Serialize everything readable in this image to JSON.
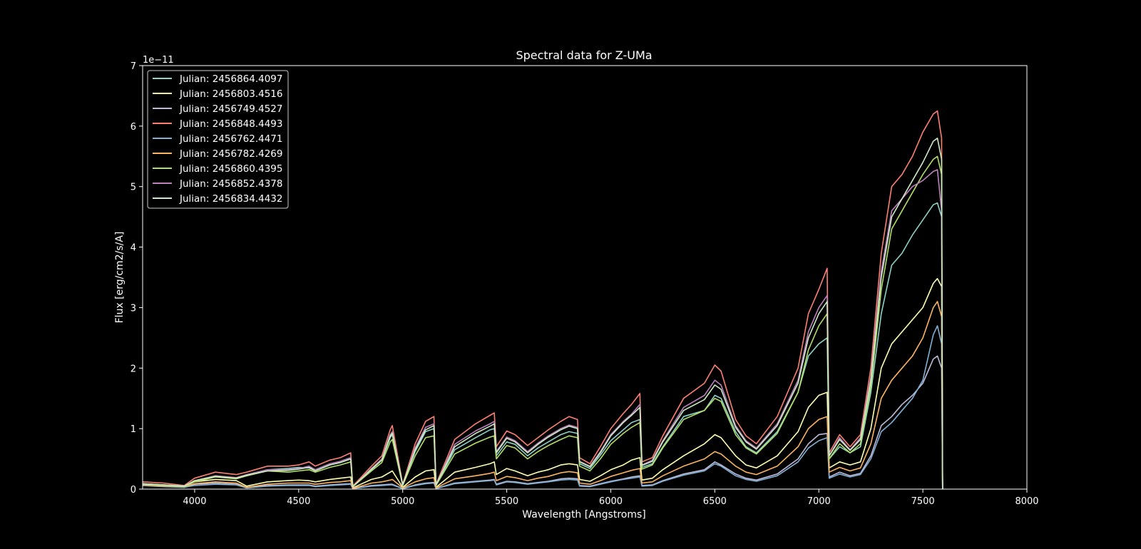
{
  "chart_data": {
    "type": "line",
    "title": "Spectral data for Z-UMa",
    "xlabel": "Wavelength [Angstroms]",
    "ylabel": "Flux [erg/cm2/s/A]",
    "y_offset_label": "1e−11",
    "xlim": [
      3750,
      8000
    ],
    "ylim": [
      0,
      7
    ],
    "y_scale": 1e-11,
    "xticks": [
      4000,
      4500,
      5000,
      5500,
      6000,
      6500,
      7000,
      7500,
      8000
    ],
    "yticks": [
      0,
      1,
      2,
      3,
      4,
      5,
      6,
      7
    ],
    "grid": false,
    "legend_position": "upper-left",
    "background": "#000000",
    "x": [
      3750,
      3850,
      3950,
      4000,
      4100,
      4200,
      4250,
      4350,
      4450,
      4500,
      4550,
      4580,
      4650,
      4700,
      4750,
      4760,
      4850,
      4900,
      4940,
      4950,
      5000,
      5060,
      5110,
      5150,
      5160,
      5250,
      5350,
      5420,
      5440,
      5450,
      5500,
      5540,
      5600,
      5650,
      5700,
      5760,
      5800,
      5840,
      5850,
      5900,
      5950,
      6000,
      6060,
      6100,
      6140,
      6150,
      6200,
      6250,
      6350,
      6450,
      6500,
      6530,
      6600,
      6650,
      6700,
      6800,
      6900,
      6950,
      7000,
      7040,
      7050,
      7100,
      7150,
      7200,
      7250,
      7300,
      7350,
      7400,
      7450,
      7500,
      7550,
      7570,
      7590,
      7595
    ],
    "series": [
      {
        "name": "Julian: 2456864.4097",
        "color": "#8dd3c7",
        "values": [
          0.08,
          0.06,
          0.04,
          0.13,
          0.22,
          0.18,
          0.22,
          0.32,
          0.34,
          0.36,
          0.35,
          0.3,
          0.4,
          0.44,
          0.5,
          0.04,
          0.32,
          0.48,
          0.85,
          0.9,
          0.06,
          0.62,
          0.95,
          1.0,
          0.06,
          0.65,
          0.85,
          0.98,
          1.0,
          0.55,
          0.78,
          0.74,
          0.55,
          0.68,
          0.78,
          0.9,
          0.95,
          0.92,
          0.42,
          0.34,
          0.56,
          0.8,
          0.98,
          1.1,
          1.15,
          0.36,
          0.42,
          0.7,
          1.2,
          1.3,
          1.55,
          1.5,
          0.95,
          0.7,
          0.6,
          0.95,
          1.6,
          2.2,
          2.4,
          2.5,
          0.5,
          0.7,
          0.6,
          0.7,
          1.6,
          2.9,
          3.7,
          3.9,
          4.2,
          4.45,
          4.7,
          4.73,
          4.5,
          0.0
        ]
      },
      {
        "name": "Julian: 2456803.4516",
        "color": "#ffffb3",
        "values": [
          0.09,
          0.07,
          0.05,
          0.12,
          0.16,
          0.14,
          0.05,
          0.12,
          0.14,
          0.15,
          0.14,
          0.12,
          0.16,
          0.18,
          0.2,
          0.02,
          0.16,
          0.2,
          0.28,
          0.3,
          0.03,
          0.2,
          0.3,
          0.32,
          0.03,
          0.28,
          0.36,
          0.42,
          0.45,
          0.24,
          0.34,
          0.3,
          0.22,
          0.28,
          0.32,
          0.4,
          0.42,
          0.4,
          0.16,
          0.13,
          0.22,
          0.32,
          0.4,
          0.48,
          0.52,
          0.15,
          0.18,
          0.32,
          0.55,
          0.75,
          0.9,
          0.85,
          0.55,
          0.4,
          0.35,
          0.55,
          0.95,
          1.35,
          1.55,
          1.6,
          0.35,
          0.45,
          0.4,
          0.45,
          1.0,
          2.0,
          2.4,
          2.6,
          2.8,
          3.0,
          3.4,
          3.48,
          3.35,
          0.0
        ]
      },
      {
        "name": "Julian: 2456749.4527",
        "color": "#bebada",
        "values": [
          0.07,
          0.05,
          0.03,
          0.08,
          0.1,
          0.08,
          0.03,
          0.06,
          0.07,
          0.07,
          0.07,
          0.05,
          0.07,
          0.08,
          0.09,
          0.01,
          0.06,
          0.07,
          0.08,
          0.08,
          0.01,
          0.07,
          0.1,
          0.11,
          0.01,
          0.1,
          0.13,
          0.15,
          0.16,
          0.08,
          0.13,
          0.12,
          0.09,
          0.11,
          0.13,
          0.17,
          0.18,
          0.17,
          0.06,
          0.05,
          0.09,
          0.13,
          0.17,
          0.2,
          0.22,
          0.06,
          0.07,
          0.14,
          0.25,
          0.32,
          0.45,
          0.4,
          0.25,
          0.18,
          0.15,
          0.25,
          0.5,
          0.75,
          0.9,
          0.92,
          0.2,
          0.28,
          0.22,
          0.26,
          0.55,
          1.05,
          1.2,
          1.4,
          1.55,
          1.75,
          2.15,
          2.2,
          2.0,
          0.0
        ]
      },
      {
        "name": "Julian: 2456848.4493",
        "color": "#fb8072",
        "values": [
          0.12,
          0.1,
          0.06,
          0.18,
          0.28,
          0.24,
          0.28,
          0.38,
          0.38,
          0.4,
          0.45,
          0.38,
          0.48,
          0.52,
          0.6,
          0.05,
          0.38,
          0.55,
          0.98,
          1.05,
          0.08,
          0.75,
          1.12,
          1.2,
          0.08,
          0.82,
          1.08,
          1.22,
          1.26,
          0.7,
          0.96,
          0.9,
          0.72,
          0.85,
          0.98,
          1.12,
          1.2,
          1.15,
          0.52,
          0.42,
          0.7,
          1.0,
          1.25,
          1.4,
          1.58,
          0.45,
          0.52,
          0.88,
          1.5,
          1.75,
          2.05,
          1.95,
          1.15,
          0.88,
          0.75,
          1.2,
          2.0,
          2.9,
          3.3,
          3.65,
          0.6,
          0.9,
          0.7,
          0.9,
          2.0,
          3.9,
          5.0,
          5.2,
          5.5,
          5.9,
          6.2,
          6.25,
          5.8,
          0.0
        ]
      },
      {
        "name": "Julian: 2456762.4471",
        "color": "#80b1d3",
        "values": [
          0.06,
          0.04,
          0.03,
          0.06,
          0.08,
          0.07,
          0.02,
          0.05,
          0.06,
          0.06,
          0.06,
          0.04,
          0.06,
          0.07,
          0.08,
          0.01,
          0.05,
          0.06,
          0.07,
          0.07,
          0.01,
          0.06,
          0.09,
          0.1,
          0.01,
          0.09,
          0.12,
          0.14,
          0.15,
          0.07,
          0.12,
          0.11,
          0.08,
          0.1,
          0.12,
          0.15,
          0.16,
          0.15,
          0.05,
          0.04,
          0.08,
          0.12,
          0.16,
          0.18,
          0.2,
          0.05,
          0.06,
          0.13,
          0.23,
          0.3,
          0.42,
          0.38,
          0.22,
          0.16,
          0.13,
          0.22,
          0.45,
          0.68,
          0.8,
          0.85,
          0.18,
          0.25,
          0.2,
          0.24,
          0.5,
          0.95,
          1.1,
          1.3,
          1.5,
          1.8,
          2.55,
          2.7,
          2.4,
          0.0
        ]
      },
      {
        "name": "Julian: 2456782.4269",
        "color": "#fdb462",
        "values": [
          0.07,
          0.05,
          0.04,
          0.09,
          0.12,
          0.1,
          0.03,
          0.08,
          0.1,
          0.1,
          0.1,
          0.08,
          0.11,
          0.12,
          0.14,
          0.01,
          0.1,
          0.12,
          0.15,
          0.16,
          0.02,
          0.12,
          0.17,
          0.19,
          0.02,
          0.17,
          0.22,
          0.26,
          0.28,
          0.14,
          0.21,
          0.19,
          0.14,
          0.18,
          0.21,
          0.27,
          0.29,
          0.27,
          0.1,
          0.08,
          0.14,
          0.21,
          0.27,
          0.31,
          0.34,
          0.1,
          0.12,
          0.22,
          0.38,
          0.5,
          0.62,
          0.58,
          0.38,
          0.28,
          0.24,
          0.38,
          0.7,
          1.0,
          1.15,
          1.2,
          0.28,
          0.36,
          0.3,
          0.35,
          0.75,
          1.5,
          1.8,
          2.0,
          2.2,
          2.5,
          3.0,
          3.1,
          2.85,
          0.0
        ]
      },
      {
        "name": "Julian: 2456860.4395",
        "color": "#b3de69",
        "values": [
          0.08,
          0.06,
          0.04,
          0.12,
          0.2,
          0.17,
          0.22,
          0.3,
          0.28,
          0.3,
          0.32,
          0.28,
          0.36,
          0.4,
          0.45,
          0.04,
          0.3,
          0.44,
          0.78,
          0.82,
          0.06,
          0.55,
          0.85,
          0.88,
          0.06,
          0.58,
          0.76,
          0.86,
          0.88,
          0.5,
          0.72,
          0.68,
          0.5,
          0.62,
          0.72,
          0.82,
          0.88,
          0.85,
          0.38,
          0.3,
          0.5,
          0.74,
          0.92,
          1.02,
          1.1,
          0.33,
          0.4,
          0.68,
          1.15,
          1.3,
          1.5,
          1.45,
          0.9,
          0.68,
          0.58,
          0.92,
          1.6,
          2.3,
          2.7,
          2.9,
          0.5,
          0.75,
          0.6,
          0.75,
          1.7,
          3.3,
          4.3,
          4.6,
          4.9,
          5.2,
          5.45,
          5.5,
          5.2,
          0.0
        ]
      },
      {
        "name": "Julian: 2456852.4378",
        "color": "#bc80bd",
        "values": [
          0.09,
          0.07,
          0.05,
          0.14,
          0.22,
          0.19,
          0.24,
          0.32,
          0.32,
          0.34,
          0.38,
          0.32,
          0.42,
          0.46,
          0.52,
          0.04,
          0.34,
          0.5,
          0.9,
          0.95,
          0.07,
          0.68,
          1.02,
          1.08,
          0.07,
          0.74,
          0.96,
          1.08,
          1.12,
          0.62,
          0.86,
          0.8,
          0.62,
          0.76,
          0.88,
          1.0,
          1.06,
          1.02,
          0.46,
          0.38,
          0.62,
          0.9,
          1.12,
          1.24,
          1.4,
          0.4,
          0.48,
          0.8,
          1.35,
          1.55,
          1.8,
          1.72,
          1.05,
          0.8,
          0.68,
          1.08,
          1.8,
          2.6,
          3.0,
          3.2,
          0.55,
          0.85,
          0.65,
          0.85,
          1.85,
          3.6,
          4.6,
          4.8,
          5.0,
          5.1,
          5.25,
          5.28,
          4.6,
          0.0
        ]
      },
      {
        "name": "Julian: 2456834.4432",
        "color": "#ccebc5",
        "values": [
          0.09,
          0.07,
          0.05,
          0.14,
          0.21,
          0.18,
          0.23,
          0.3,
          0.31,
          0.33,
          0.36,
          0.3,
          0.4,
          0.44,
          0.5,
          0.04,
          0.33,
          0.48,
          0.88,
          0.92,
          0.07,
          0.65,
          0.98,
          1.05,
          0.07,
          0.7,
          0.92,
          1.04,
          1.08,
          0.6,
          0.84,
          0.78,
          0.6,
          0.74,
          0.86,
          0.98,
          1.04,
          1.0,
          0.45,
          0.37,
          0.6,
          0.88,
          1.1,
          1.22,
          1.35,
          0.39,
          0.46,
          0.78,
          1.3,
          1.48,
          1.72,
          1.65,
          1.02,
          0.78,
          0.66,
          1.05,
          1.75,
          2.5,
          2.9,
          3.1,
          0.55,
          0.82,
          0.64,
          0.82,
          1.8,
          3.5,
          4.5,
          4.8,
          5.1,
          5.4,
          5.75,
          5.8,
          5.45,
          0.0
        ]
      }
    ]
  }
}
